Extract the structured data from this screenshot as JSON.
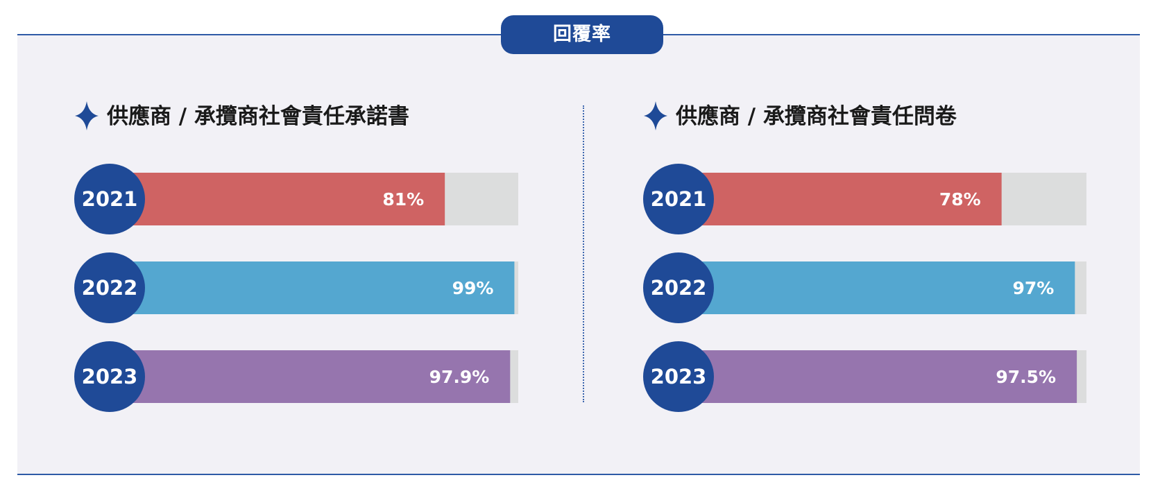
{
  "header": {
    "title": "回覆率"
  },
  "colors": {
    "primary": "#1f4a97",
    "track": "#dcdddd",
    "panel": "#f2f1f6",
    "series": [
      "#cf6363",
      "#54a7d0",
      "#9675ae"
    ]
  },
  "icons": {
    "title_marker": "four-point-star-icon"
  },
  "chart_data": [
    {
      "type": "bar",
      "title": "供應商 / 承攬商社會責任承諾書",
      "categories": [
        "2021",
        "2022",
        "2023"
      ],
      "values": [
        81,
        99,
        97.9
      ],
      "value_labels": [
        "81%",
        "99%",
        "97.9%"
      ],
      "xlim": [
        0,
        100
      ]
    },
    {
      "type": "bar",
      "title": "供應商 / 承攬商社會責任問卷",
      "categories": [
        "2021",
        "2022",
        "2023"
      ],
      "values": [
        78,
        97,
        97.5
      ],
      "value_labels": [
        "78%",
        "97%",
        "97.5%"
      ],
      "xlim": [
        0,
        100
      ]
    }
  ]
}
